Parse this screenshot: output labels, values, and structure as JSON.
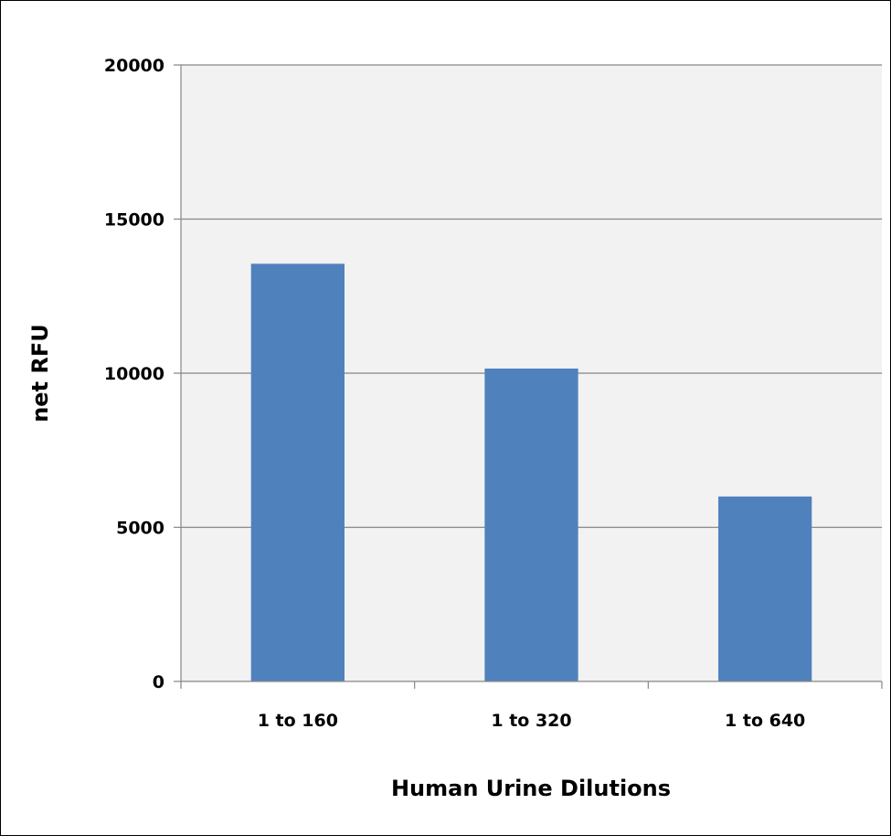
{
  "chart_data": {
    "type": "bar",
    "title": "",
    "xlabel": "Human Urine Dilutions",
    "ylabel": "net RFU",
    "categories": [
      "1 to 160",
      "1 to 320",
      "1 to 640"
    ],
    "series": [
      {
        "values": [
          13550,
          10150,
          6000
        ]
      }
    ],
    "ylim": [
      0,
      20000
    ],
    "yticks": [
      0,
      5000,
      10000,
      15000,
      20000
    ],
    "ytick_labels": [
      "0",
      "5000",
      "10000",
      "15000",
      "20000"
    ],
    "grid": true,
    "legend": "none",
    "colors": {
      "bar": "#4F81BD",
      "plot_area": "#F2F2F2",
      "gridline": "#868686"
    }
  }
}
